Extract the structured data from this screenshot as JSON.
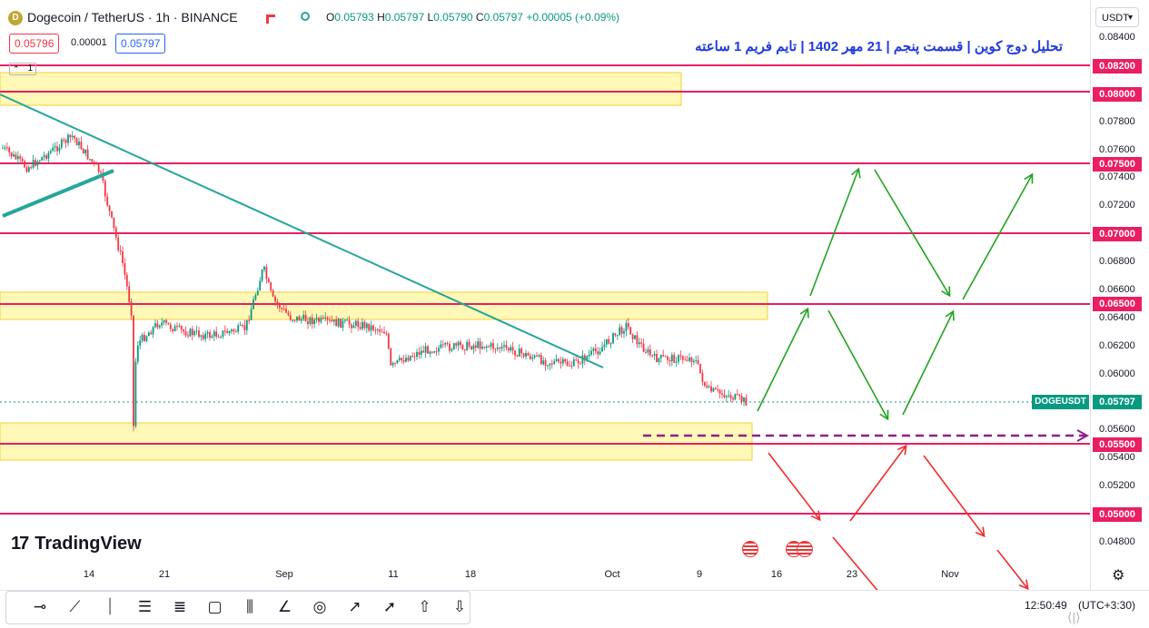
{
  "header": {
    "symbol_title": "Dogecoin / TetherUS · 1h · BINANCE",
    "coin_letter": "D",
    "ohlc": {
      "o_label": "O",
      "o": "0.05793",
      "h_label": "H",
      "h": "0.05797",
      "l_label": "L",
      "l": "0.05790",
      "c_label": "C",
      "c": "0.05797",
      "change": "+0.00005 (+0.09%)"
    },
    "sell_price": "0.05796",
    "spread": "0.00001",
    "buy_price": "0.05797",
    "layer_count": "1"
  },
  "annotation_title": "تحلیل دوج کوین | قسمت پنجم | 21 مهر 1402 | تایم فریم 1 ساعته",
  "currency": "USDT",
  "price_axis": {
    "ticks": [
      "0.08400",
      "0.07800",
      "0.07600",
      "0.07400",
      "0.07200",
      "0.06800",
      "0.06600",
      "0.06400",
      "0.06200",
      "0.06000",
      "0.05600",
      "0.05400",
      "0.05200",
      "0.04800"
    ],
    "highlight_levels": [
      "0.08200",
      "0.08000",
      "0.07500",
      "0.07000",
      "0.06500",
      "0.05500",
      "0.05000"
    ],
    "symbol_tag": "DOGEUSDT",
    "current_price": "0.05797"
  },
  "time_axis": [
    "14",
    "21",
    "Sep",
    "11",
    "18",
    "Oct",
    "9",
    "16",
    "23",
    "Nov"
  ],
  "branding": {
    "logo_text": "TradingView",
    "logo_mark": "17"
  },
  "status": {
    "clock": "12:50:49",
    "timezone": "(UTC+3:30)"
  },
  "colors": {
    "level_line": "#e91e63",
    "zone_fill": "#fff59d",
    "trendline": "#26a69a",
    "path_green": "#22a322",
    "path_red": "#f22b2b",
    "dashed": "#8e1f8e",
    "up": "#089981",
    "down": "#f23645"
  },
  "toolbar_icons": [
    "horizontal-ray-icon",
    "trend-line-icon",
    "vertical-line-icon",
    "parallel-channel-icon",
    "fib-retracement-icon",
    "rectangle-icon",
    "long-position-icon",
    "angle-icon",
    "circle-icon",
    "arrow-marker-icon",
    "path-icon",
    "arrow-up-icon",
    "arrow-down-icon"
  ]
}
